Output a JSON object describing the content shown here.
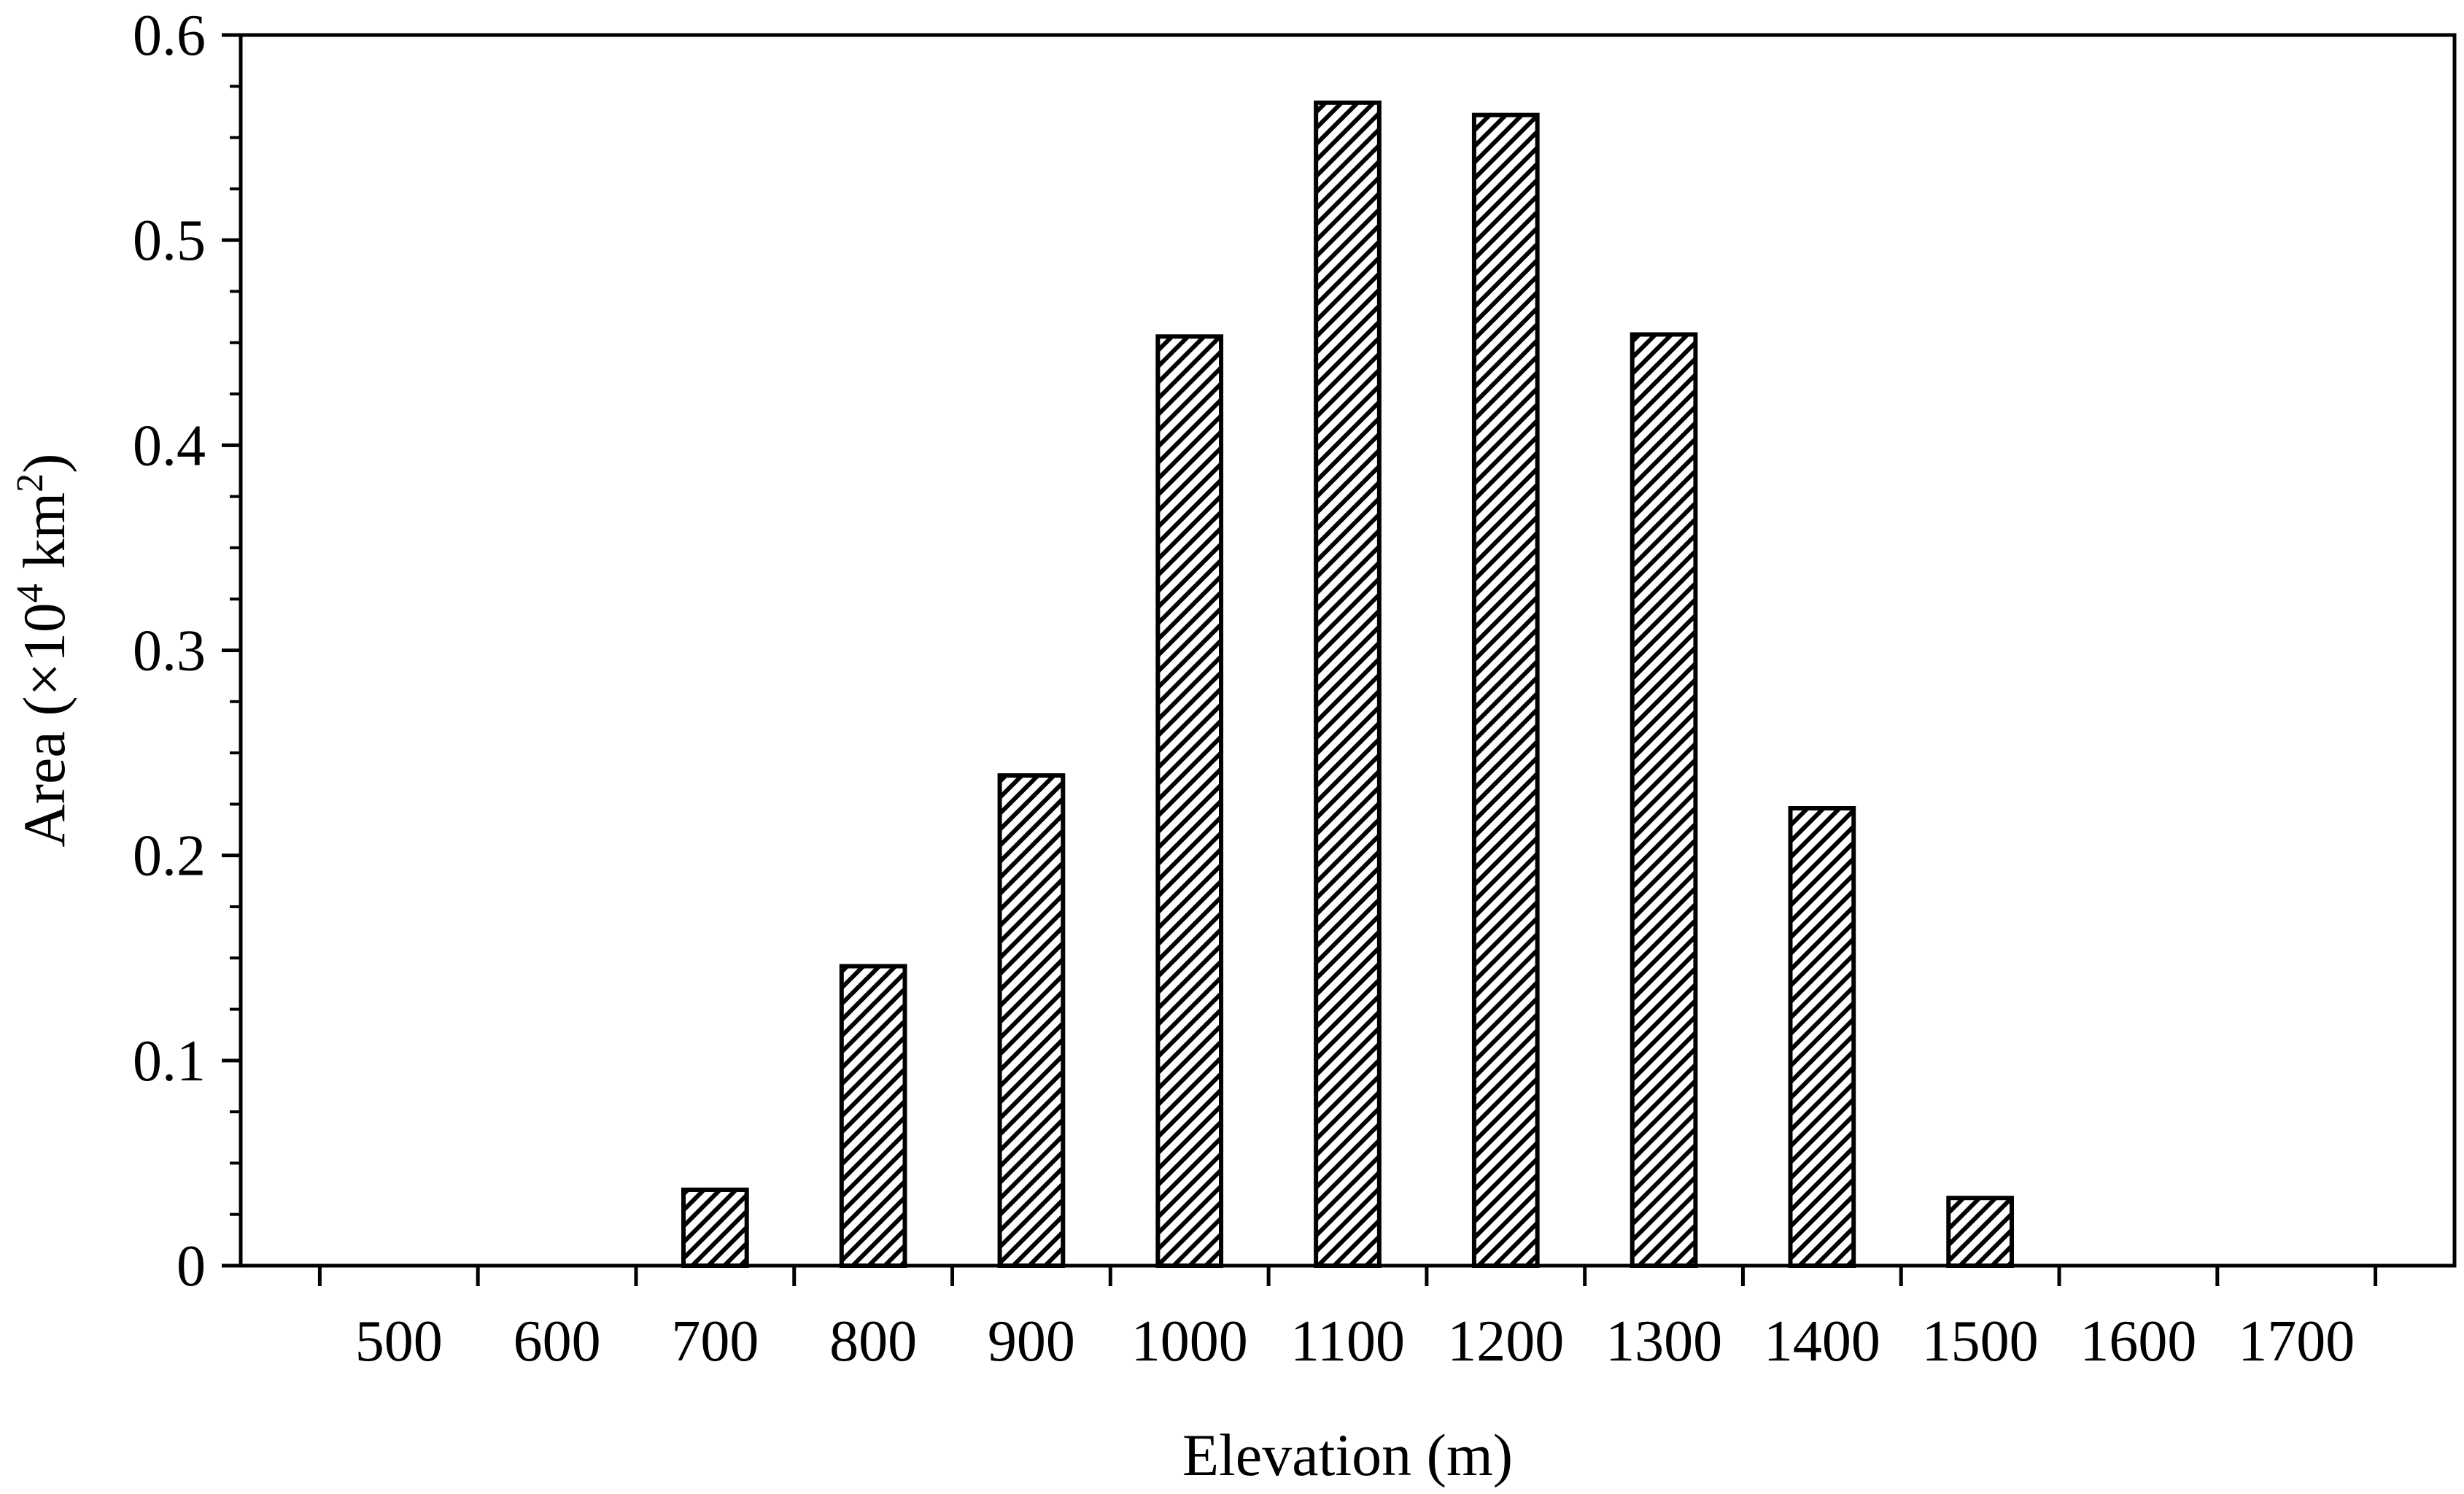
{
  "chart_data": {
    "type": "bar",
    "title": "",
    "xlabel": "Elevation (m)",
    "ylabel": {
      "prefix": "Area (",
      "times": "×",
      "base": "10",
      "exp1": "4",
      "unit": "km",
      "exp2": "2",
      "suffix": ")"
    },
    "categories": [
      "500",
      "600",
      "700",
      "800",
      "900",
      "1000",
      "1100",
      "1200",
      "1300",
      "1400",
      "1500",
      "1600",
      "1700"
    ],
    "values": [
      0,
      0,
      0.037,
      0.146,
      0.239,
      0.453,
      0.567,
      0.561,
      0.454,
      0.223,
      0.033,
      0,
      0
    ],
    "ylim": [
      0,
      0.6
    ],
    "yticks": [
      "0",
      "0.1",
      "0.2",
      "0.3",
      "0.4",
      "0.5",
      "0.6"
    ],
    "grid": false,
    "legend": "none",
    "bar_fill": "diagonal-hatch",
    "colors": {
      "bar_stroke": "#000000",
      "hatch": "#000000",
      "axis": "#000000",
      "background": "#ffffff"
    }
  }
}
